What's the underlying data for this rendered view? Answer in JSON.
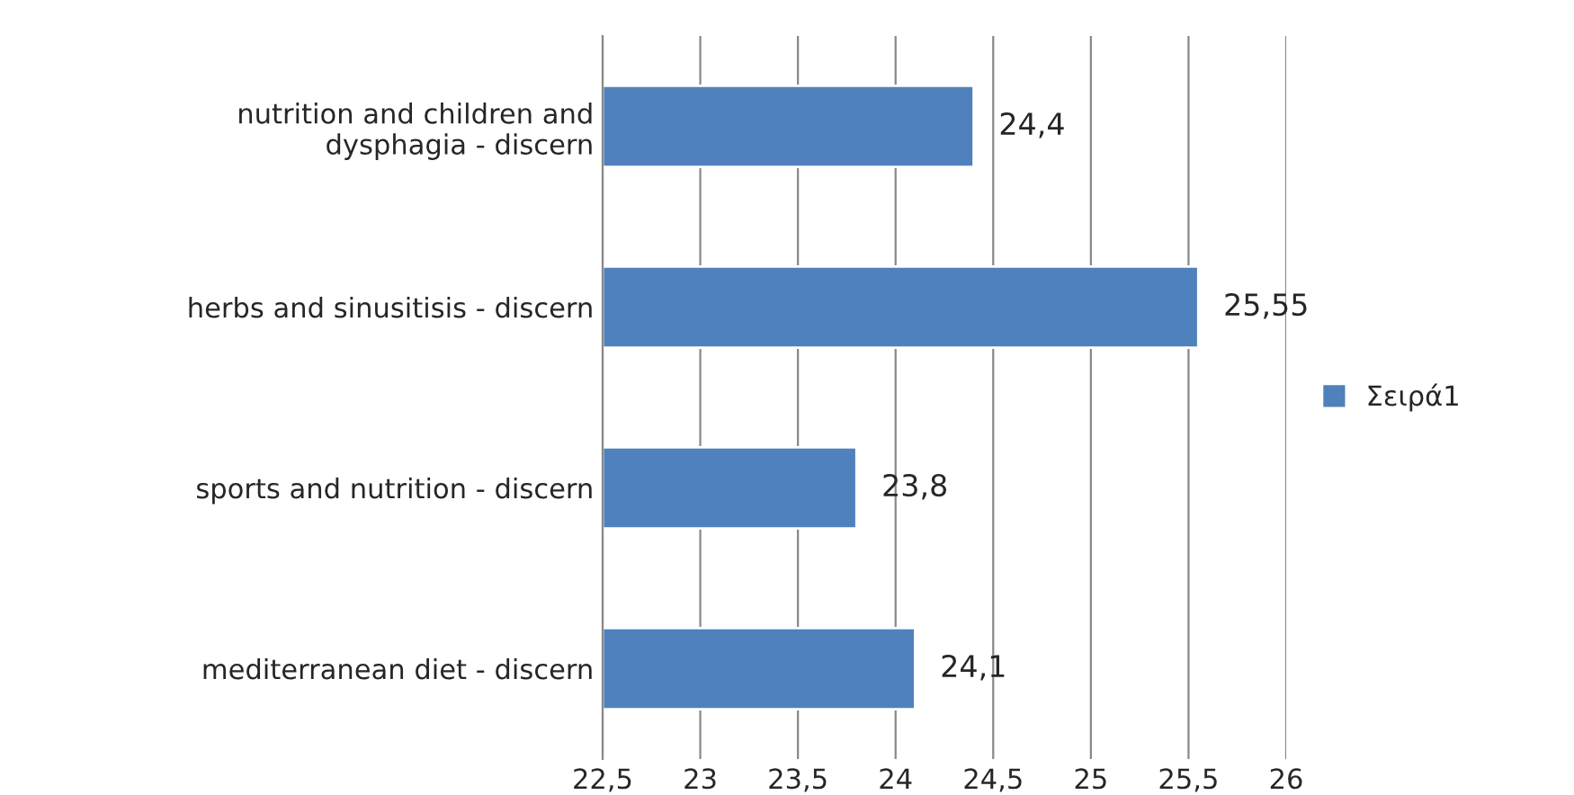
{
  "chart_data": {
    "type": "bar",
    "orientation": "horizontal",
    "categories": [
      "nutrition and children and\ndysphagia - discern",
      "herbs and sinusitisis - discern",
      "sports and nutrition - discern",
      "mediterranean diet - discern"
    ],
    "series": [
      {
        "name": "Σειρά1",
        "color": "#4f81bd",
        "values": [
          24.4,
          25.55,
          23.8,
          24.1
        ],
        "value_labels": [
          "24,4",
          "25,55",
          "23,8",
          "24,1"
        ]
      }
    ],
    "xlim": [
      22.5,
      26
    ],
    "xticks": [
      {
        "value": 22.5,
        "label": "22,5"
      },
      23,
      {
        "value": 23.5,
        "label": "23,5"
      },
      24,
      {
        "value": 24.5,
        "label": "24,5"
      },
      25,
      {
        "value": 25.5,
        "label": "25,5"
      },
      26
    ],
    "grid": "x",
    "legend": "right"
  }
}
